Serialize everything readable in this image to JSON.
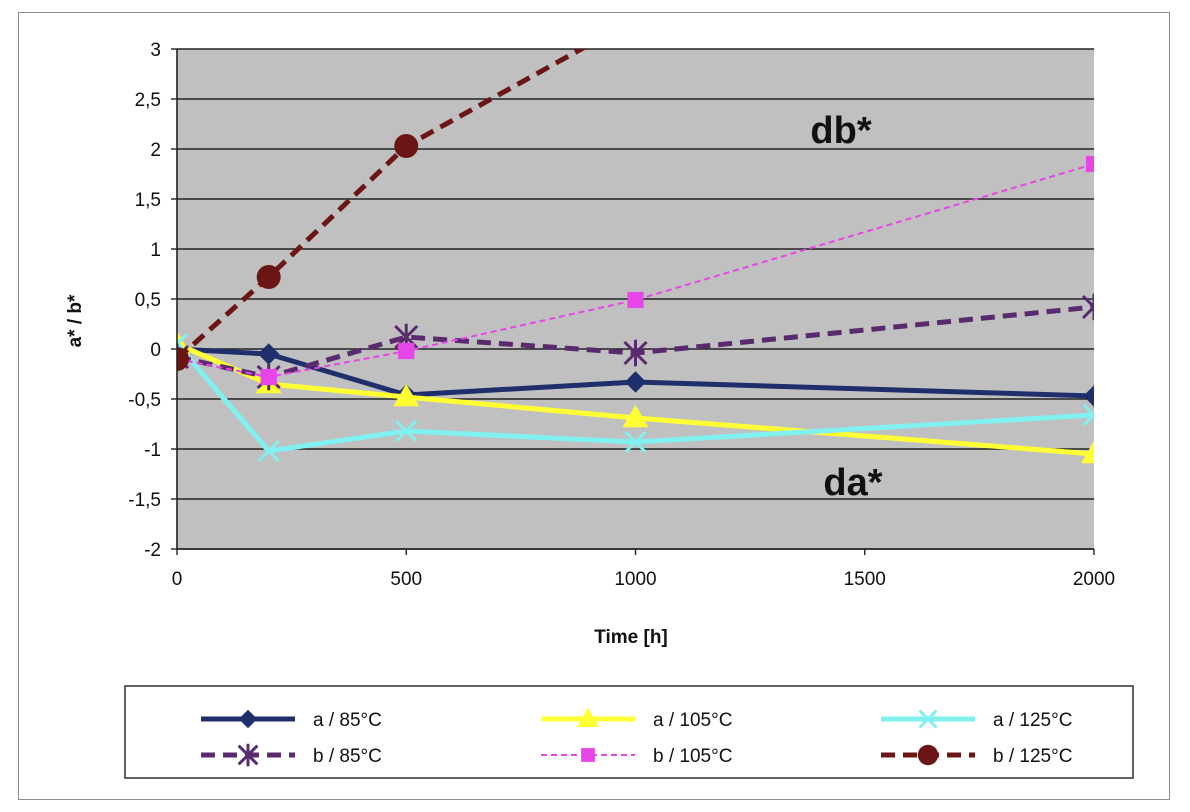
{
  "chart_data": {
    "type": "line",
    "xlabel": "Time [h]",
    "ylabel": "a* / b*",
    "xlim": [
      0,
      2000
    ],
    "ylim": [
      -2,
      3
    ],
    "x_ticks": [
      "0",
      "500",
      "1000",
      "1500",
      "2000"
    ],
    "y_ticks": [
      "3",
      "2,5",
      "2",
      "1,5",
      "1",
      "0,5",
      "0",
      "-0,5",
      "-1",
      "-1,5",
      "-2"
    ],
    "grid": true,
    "legend_position": "bottom",
    "annotations": [
      "db*",
      "da*"
    ],
    "x": [
      0,
      200,
      500,
      1000,
      2000
    ],
    "series": [
      {
        "name": "a / 85°C",
        "values": [
          0.0,
          -0.05,
          -0.46,
          -0.33,
          -0.47
        ],
        "color": "#1f2f6b",
        "dash": "solid",
        "marker": "diamond"
      },
      {
        "name": "a / 105°C",
        "values": [
          0.05,
          -0.35,
          -0.48,
          -0.69,
          -1.05
        ],
        "color": "#ffff33",
        "dash": "solid",
        "marker": "triangle"
      },
      {
        "name": "a / 125°C",
        "values": [
          0.05,
          -1.02,
          -0.82,
          -0.93,
          -0.66
        ],
        "color": "#80f0f0",
        "dash": "solid",
        "marker": "x"
      },
      {
        "name": "b / 85°C",
        "values": [
          -0.08,
          -0.28,
          0.12,
          -0.04,
          0.42
        ],
        "color": "#5a2a6e",
        "dash": "dashed",
        "marker": "star"
      },
      {
        "name": "b / 105°C",
        "values": [
          -0.1,
          -0.28,
          -0.02,
          0.49,
          1.85
        ],
        "color": "#e845e8",
        "dash": "dotted",
        "marker": "square"
      },
      {
        "name": "b / 125°C",
        "values": [
          -0.1,
          0.72,
          2.03,
          3.3,
          null
        ],
        "color": "#6b1515",
        "dash": "dashed",
        "marker": "circle"
      }
    ]
  }
}
